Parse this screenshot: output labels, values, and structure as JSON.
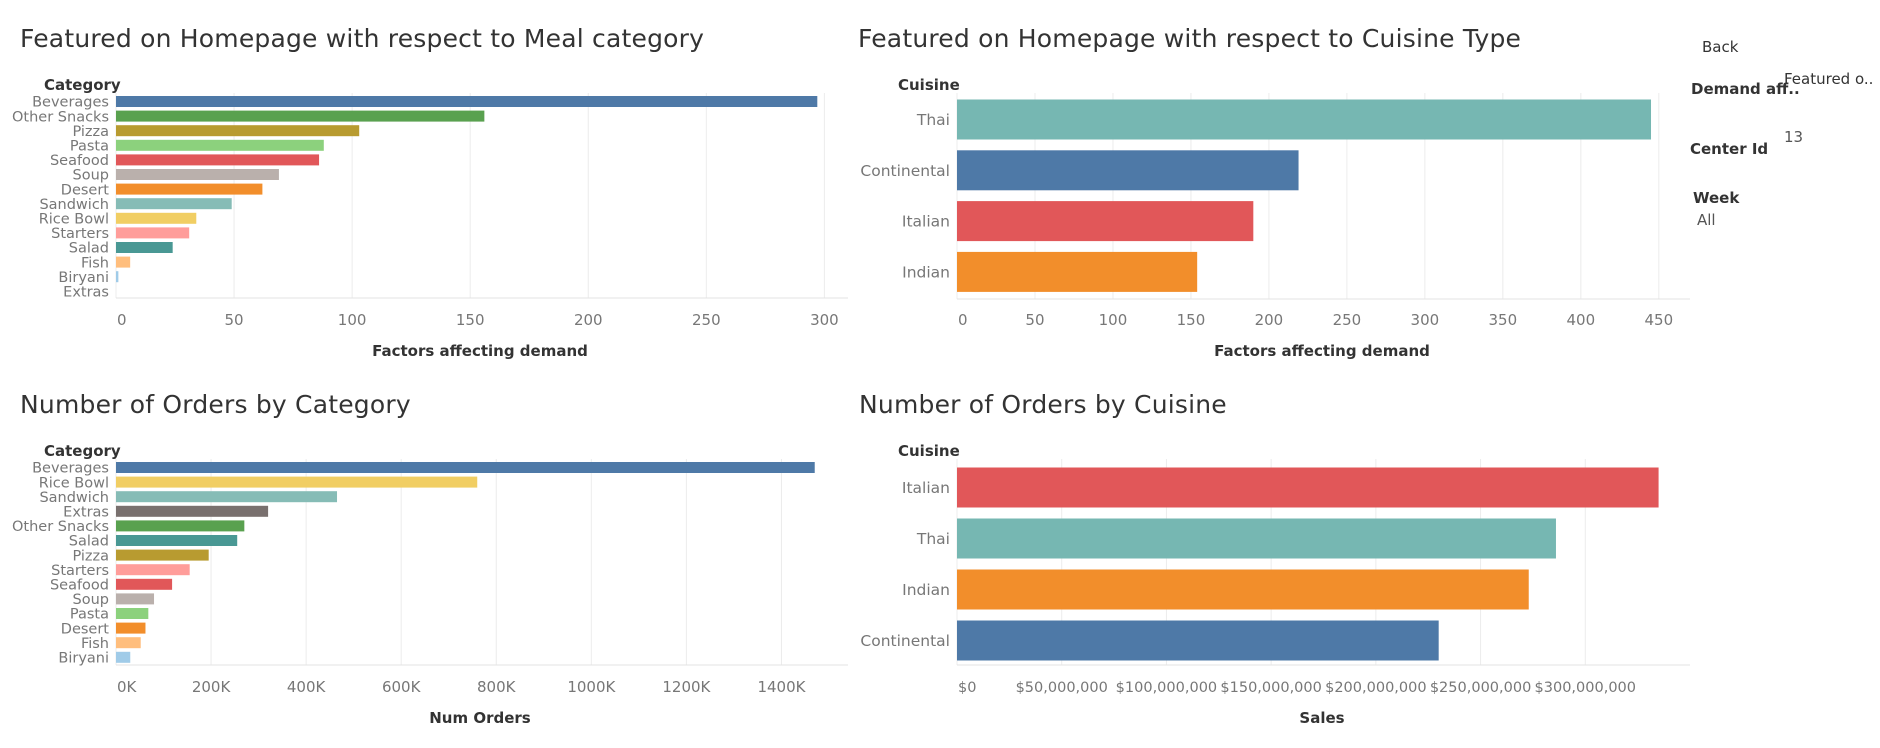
{
  "controls": {
    "back_label": "Back",
    "demand_label": "Demand aff..",
    "featured_label": "Featured o..",
    "featured_value": "13",
    "center_id_label": "Center Id",
    "week_label": "Week",
    "week_value": "All"
  },
  "chart_data": [
    {
      "type": "bar",
      "orientation": "horizontal",
      "title": "Featured on Homepage with respect to Meal category",
      "header_label": "Category",
      "xlabel": "Factors affecting demand",
      "ylabel": "Category",
      "categories": [
        "Beverages",
        "Other Snacks",
        "Pizza",
        "Pasta",
        "Seafood",
        "Soup",
        "Desert",
        "Sandwich",
        "Rice Bowl",
        "Starters",
        "Salad",
        "Fish",
        "Biryani",
        "Extras"
      ],
      "values": [
        297,
        156,
        103,
        88,
        86,
        69,
        62,
        49,
        34,
        31,
        24,
        6,
        1,
        0
      ],
      "colors": [
        "#4e79a7",
        "#59a14f",
        "#b89b30",
        "#8cd17d",
        "#e15759",
        "#bab0ac",
        "#f28e2b",
        "#86bcb6",
        "#f1ce63",
        "#ff9d9a",
        "#499894",
        "#ffbe7d",
        "#a0cbe8",
        "#79706e"
      ],
      "xlim": [
        0,
        310
      ],
      "ticks": [
        0,
        50,
        100,
        150,
        200,
        250,
        300
      ],
      "tick_labels": [
        "0",
        "50",
        "100",
        "150",
        "200",
        "250",
        "300"
      ]
    },
    {
      "type": "bar",
      "orientation": "horizontal",
      "title": "Featured on Homepage with respect to Cuisine Type",
      "header_label": "Cuisine",
      "xlabel": "Factors affecting demand",
      "ylabel": "Cuisine",
      "categories": [
        "Thai",
        "Continental",
        "Italian",
        "Indian"
      ],
      "values": [
        445,
        219,
        190,
        154
      ],
      "colors": [
        "#76b7b2",
        "#4e79a7",
        "#e15759",
        "#f28e2b"
      ],
      "xlim": [
        0,
        470
      ],
      "ticks": [
        0,
        50,
        100,
        150,
        200,
        250,
        300,
        350,
        400,
        450
      ],
      "tick_labels": [
        "0",
        "50",
        "100",
        "150",
        "200",
        "250",
        "300",
        "350",
        "400",
        "450"
      ]
    },
    {
      "type": "bar",
      "orientation": "horizontal",
      "title": "Number of Orders by Category",
      "header_label": "Category",
      "xlabel": "Num Orders",
      "ylabel": "Category",
      "categories": [
        "Beverages",
        "Rice Bowl",
        "Sandwich",
        "Extras",
        "Other Snacks",
        "Salad",
        "Pizza",
        "Starters",
        "Seafood",
        "Soup",
        "Pasta",
        "Desert",
        "Fish",
        "Biryani"
      ],
      "values": [
        1470000,
        760000,
        465000,
        320000,
        270000,
        255000,
        195000,
        155000,
        118000,
        80000,
        68000,
        62000,
        52000,
        30000
      ],
      "colors": [
        "#4e79a7",
        "#f1ce63",
        "#86bcb6",
        "#79706e",
        "#59a14f",
        "#499894",
        "#b89b30",
        "#ff9d9a",
        "#e15759",
        "#bab0ac",
        "#8cd17d",
        "#f28e2b",
        "#ffbe7d",
        "#a0cbe8"
      ],
      "xlim": [
        0,
        1540000
      ],
      "ticks": [
        0,
        200000,
        400000,
        600000,
        800000,
        1000000,
        1200000,
        1400000
      ],
      "tick_labels": [
        "0K",
        "200K",
        "400K",
        "600K",
        "800K",
        "1000K",
        "1200K",
        "1400K"
      ]
    },
    {
      "type": "bar",
      "orientation": "horizontal",
      "title": "Number of Orders by Cuisine",
      "header_label": "Cuisine",
      "xlabel": "Sales",
      "ylabel": "Cuisine",
      "categories": [
        "Italian",
        "Thai",
        "Indian",
        "Continental"
      ],
      "values": [
        335000000,
        286000000,
        273000000,
        230000000
      ],
      "colors": [
        "#e15759",
        "#76b7b2",
        "#f28e2b",
        "#4e79a7"
      ],
      "xlim": [
        0,
        350000000
      ],
      "ticks": [
        0,
        50000000,
        100000000,
        150000000,
        200000000,
        250000000,
        300000000
      ],
      "tick_labels": [
        "$0",
        "$50,000,000",
        "$100,000,000",
        "$150,000,000",
        "$200,000,000",
        "$250,000,000",
        "$300,000,000"
      ]
    }
  ]
}
